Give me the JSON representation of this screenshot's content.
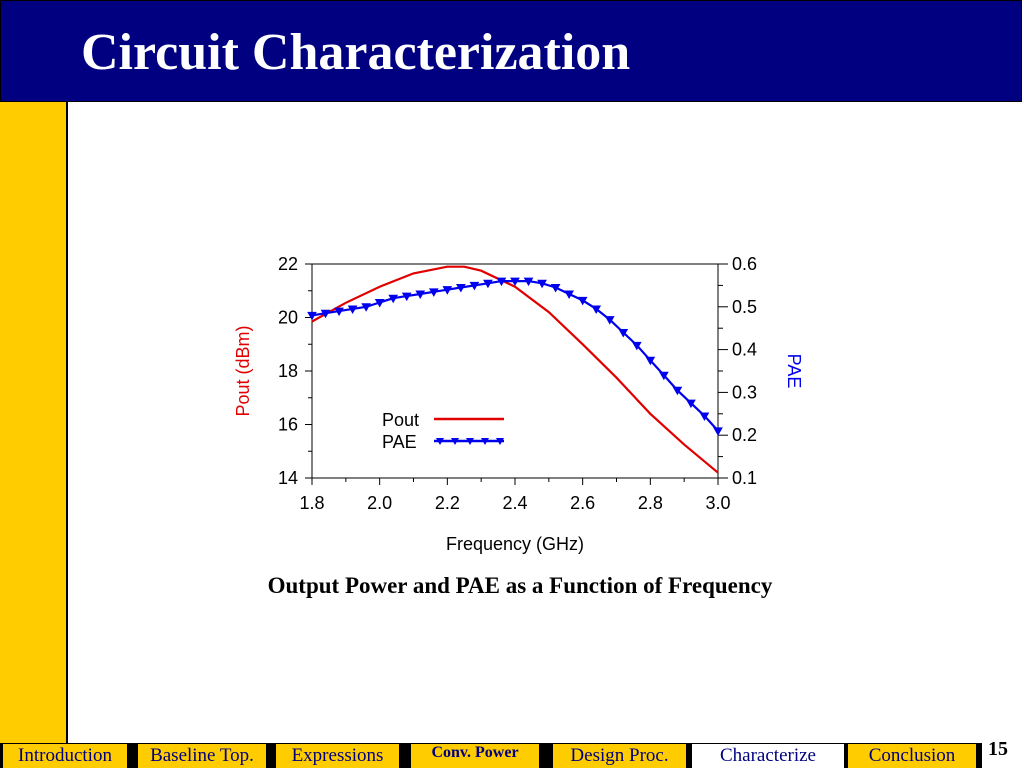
{
  "slide": {
    "title": "Circuit Characterization",
    "caption": "Output Power and PAE as a Function of Frequency",
    "page_number": "15"
  },
  "nav": {
    "items": [
      {
        "label": "Introduction",
        "state": "normal"
      },
      {
        "label": "Baseline Top.",
        "state": "normal"
      },
      {
        "label": "Expressions",
        "state": "normal"
      },
      {
        "label": "Conv. Power",
        "state": "active"
      },
      {
        "label": "Design Proc.",
        "state": "normal"
      },
      {
        "label": "Characterize",
        "state": "current"
      },
      {
        "label": "Conclusion",
        "state": "normal"
      }
    ]
  },
  "colors": {
    "header_bg": "#000080",
    "accent_yellow": "#ffcc00",
    "pout_color": "#e00000",
    "pae_color": "#0000ee"
  },
  "chart_data": {
    "type": "line",
    "xlabel": "Frequency (GHz)",
    "ylabel": "Pout (dBm)",
    "y2label": "PAE",
    "xlim": [
      1.8,
      3.0
    ],
    "ylim": [
      14,
      22
    ],
    "y2lim": [
      0.1,
      0.6
    ],
    "xticks": [
      "1.8",
      "2.0",
      "2.2",
      "2.4",
      "2.6",
      "2.8",
      "3.0"
    ],
    "yticks": [
      "14",
      "16",
      "18",
      "20",
      "22"
    ],
    "y2ticks": [
      "0.1",
      "0.2",
      "0.3",
      "0.4",
      "0.5",
      "0.6"
    ],
    "legend_position": "lower-center",
    "series": [
      {
        "name": "Pout",
        "axis": "left",
        "x": [
          1.8,
          1.9,
          2.0,
          2.1,
          2.2,
          2.25,
          2.3,
          2.4,
          2.5,
          2.6,
          2.7,
          2.8,
          2.9,
          3.0
        ],
        "values": [
          19.85,
          20.55,
          21.15,
          21.65,
          21.9,
          21.9,
          21.75,
          21.15,
          20.2,
          19.0,
          17.75,
          16.4,
          15.25,
          14.2
        ]
      },
      {
        "name": "PAE",
        "axis": "right",
        "marker": "triangle-down",
        "x": [
          1.8,
          1.84,
          1.88,
          1.92,
          1.96,
          2.0,
          2.04,
          2.08,
          2.12,
          2.16,
          2.2,
          2.24,
          2.28,
          2.32,
          2.36,
          2.4,
          2.44,
          2.48,
          2.52,
          2.56,
          2.6,
          2.64,
          2.68,
          2.72,
          2.76,
          2.8,
          2.84,
          2.88,
          2.92,
          2.96,
          3.0
        ],
        "values": [
          0.48,
          0.485,
          0.49,
          0.495,
          0.5,
          0.51,
          0.52,
          0.525,
          0.53,
          0.535,
          0.54,
          0.545,
          0.55,
          0.555,
          0.56,
          0.56,
          0.56,
          0.555,
          0.545,
          0.53,
          0.515,
          0.495,
          0.47,
          0.44,
          0.41,
          0.375,
          0.34,
          0.305,
          0.275,
          0.245,
          0.21
        ]
      }
    ]
  }
}
